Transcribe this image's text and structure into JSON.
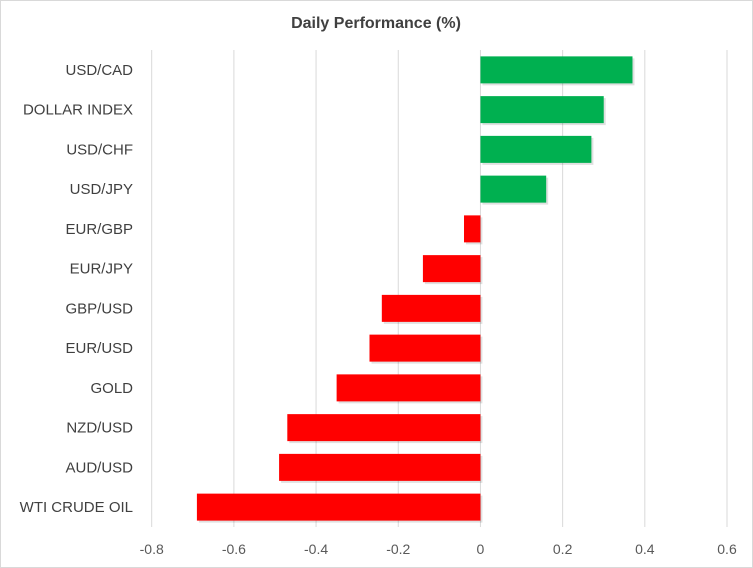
{
  "chart_data": {
    "type": "bar",
    "orientation": "horizontal",
    "title": "Daily Performance  (%)",
    "xlabel": "",
    "ylabel": "",
    "categories": [
      "USD/CAD",
      "DOLLAR INDEX",
      "USD/CHF",
      "USD/JPY",
      "EUR/GBP",
      "EUR/JPY",
      "GBP/USD",
      "EUR/USD",
      "GOLD",
      "NZD/USD",
      "AUD/USD",
      "WTI CRUDE OIL"
    ],
    "values": [
      0.37,
      0.3,
      0.27,
      0.16,
      -0.04,
      -0.14,
      -0.24,
      -0.27,
      -0.35,
      -0.47,
      -0.49,
      -0.69
    ],
    "xlim": [
      -0.8,
      0.6
    ],
    "x_ticks": [
      "-0.8",
      "-0.6",
      "-0.4",
      "-0.2",
      "0",
      "0.2",
      "0.4",
      "0.6"
    ],
    "grid": "vertical",
    "legend": "none",
    "colors": {
      "positive": "#00b050",
      "negative": "#ff0000",
      "grid": "#d9d9d9",
      "border": "#d9d9d9"
    }
  }
}
